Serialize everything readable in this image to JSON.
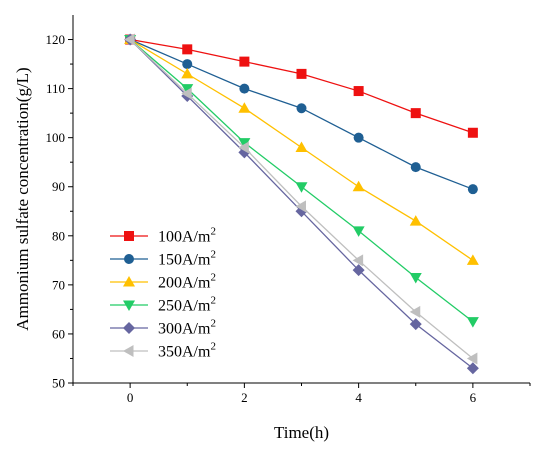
{
  "chart_data": {
    "type": "line",
    "xlabel": "Time(h)",
    "ylabel": "Ammonium sulfate concentration(g/L)",
    "xlim": [
      -1,
      7
    ],
    "ylim": [
      50,
      125
    ],
    "x_ticks": [
      0,
      2,
      4,
      6
    ],
    "y_ticks": [
      50,
      60,
      70,
      80,
      90,
      100,
      110,
      120
    ],
    "x": [
      0,
      1,
      2,
      3,
      4,
      5,
      6
    ],
    "legend_position": "lower-left",
    "grid": false,
    "series": [
      {
        "name": "100A/m",
        "name_sup": "2",
        "marker": "square",
        "color": "#ee1111",
        "values": [
          120,
          118,
          115.5,
          113,
          109.5,
          105,
          101
        ]
      },
      {
        "name": "150A/m",
        "name_sup": "2",
        "marker": "circle",
        "color": "#1f5f93",
        "values": [
          120,
          115,
          110,
          106,
          100,
          94,
          89.5
        ]
      },
      {
        "name": "200A/m",
        "name_sup": "2",
        "marker": "triangle-up",
        "color": "#ffc000",
        "values": [
          120,
          113,
          106,
          98,
          90,
          83,
          75
        ]
      },
      {
        "name": "250A/m",
        "name_sup": "2",
        "marker": "triangle-down",
        "color": "#22cc66",
        "values": [
          120,
          110,
          99,
          90,
          81,
          71.5,
          62.5
        ]
      },
      {
        "name": "300A/m",
        "name_sup": "2",
        "marker": "diamond",
        "color": "#6666a0",
        "values": [
          120,
          108.5,
          97,
          85,
          73,
          62,
          53
        ]
      },
      {
        "name": "350A/m",
        "name_sup": "2",
        "marker": "triangle-left",
        "color": "#bfbfbf",
        "values": [
          120,
          109,
          98,
          86,
          75,
          64.5,
          55
        ]
      }
    ]
  }
}
